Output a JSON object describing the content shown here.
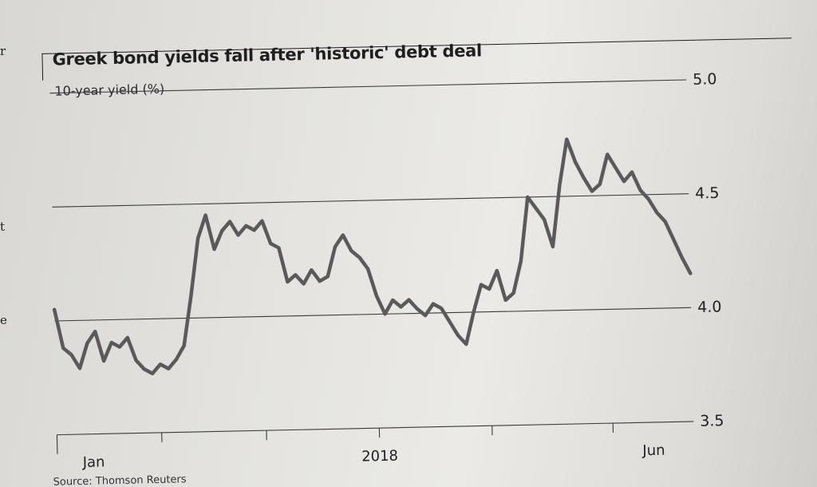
{
  "chart_data": {
    "type": "line",
    "title": "Greek bond yields fall after 'historic' debt deal",
    "subtitle": "10-year yield (%)",
    "source": "Source: Thomson Reuters",
    "ylim": [
      3.5,
      5.0
    ],
    "yticks": [
      {
        "value": 5.0,
        "label": "5.0"
      },
      {
        "value": 4.5,
        "label": "4.5"
      },
      {
        "value": 4.0,
        "label": "4.0"
      },
      {
        "value": 3.5,
        "label": "3.5"
      }
    ],
    "xlim": [
      0,
      158
    ],
    "xticks_minor": [
      26,
      52,
      80,
      108,
      138
    ],
    "xticks_labeled": [
      {
        "value": 9,
        "label": "Jan"
      },
      {
        "value": 80,
        "label": "2018"
      },
      {
        "value": 148,
        "label": "Jun"
      }
    ],
    "grid": true,
    "line_color": "#5a5a5a",
    "series": [
      {
        "name": "",
        "x": [
          0,
          2,
          4,
          6,
          8,
          10,
          12,
          14,
          16,
          18,
          20,
          22,
          24,
          26,
          28,
          30,
          32,
          34,
          36,
          38,
          40,
          42,
          44,
          46,
          48,
          50,
          52,
          54,
          56,
          58,
          60,
          62,
          64,
          66,
          68,
          70,
          72,
          74,
          76,
          78,
          80,
          82,
          84,
          86,
          88,
          90,
          92,
          94,
          96,
          98,
          100,
          102,
          104,
          106,
          108,
          110,
          112,
          114,
          116,
          118,
          120,
          122,
          124,
          126,
          128,
          130,
          132,
          134,
          136,
          138,
          140,
          142,
          144,
          146,
          148,
          150,
          152,
          154,
          156,
          158
        ],
        "values": [
          4.05,
          3.88,
          3.85,
          3.79,
          3.9,
          3.95,
          3.82,
          3.9,
          3.88,
          3.92,
          3.82,
          3.78,
          3.76,
          3.8,
          3.78,
          3.82,
          3.88,
          4.1,
          4.35,
          4.45,
          4.3,
          4.38,
          4.42,
          4.36,
          4.4,
          4.38,
          4.42,
          4.32,
          4.3,
          4.15,
          4.18,
          4.14,
          4.2,
          4.15,
          4.17,
          4.3,
          4.35,
          4.28,
          4.25,
          4.2,
          4.08,
          4.0,
          4.06,
          4.03,
          4.06,
          4.02,
          3.99,
          4.04,
          4.02,
          3.96,
          3.9,
          3.86,
          4.0,
          4.12,
          4.1,
          4.18,
          4.05,
          4.08,
          4.22,
          4.5,
          4.45,
          4.4,
          4.28,
          4.55,
          4.75,
          4.65,
          4.58,
          4.52,
          4.55,
          4.68,
          4.62,
          4.56,
          4.6,
          4.52,
          4.48,
          4.42,
          4.38,
          4.3,
          4.22,
          4.15
        ]
      }
    ]
  }
}
